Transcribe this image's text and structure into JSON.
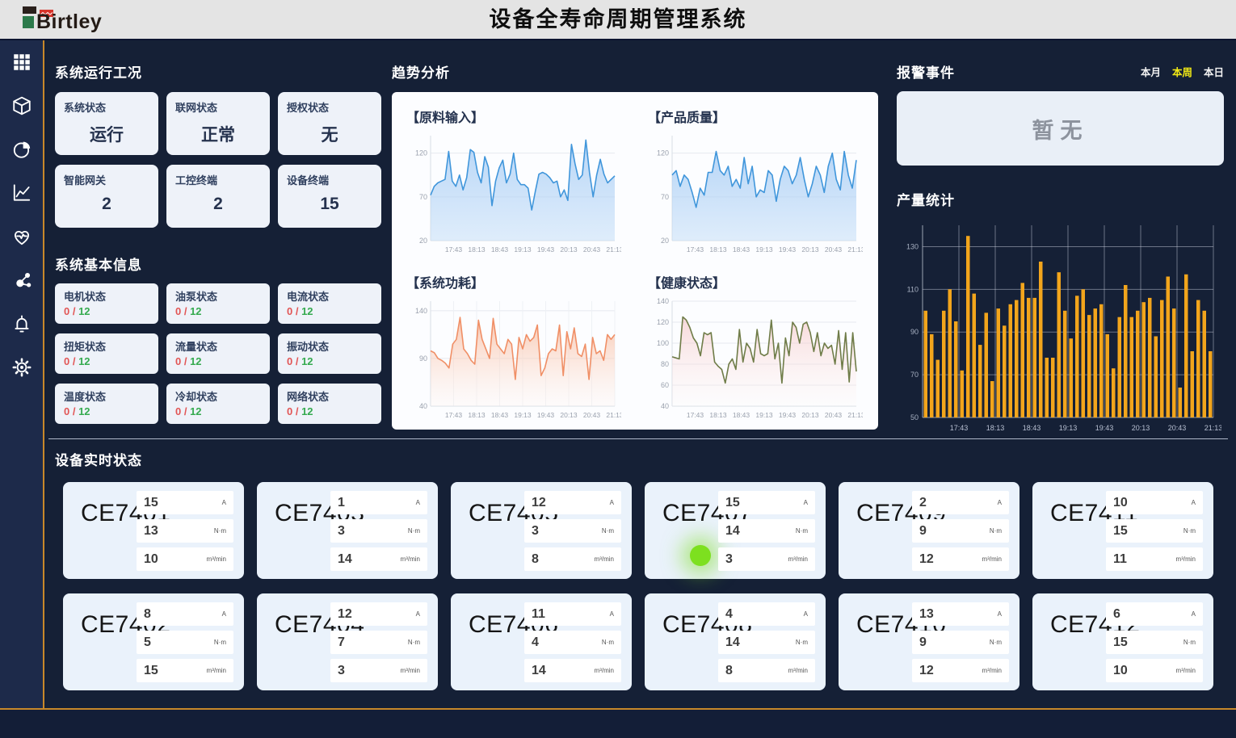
{
  "header": {
    "logo_text": "Birtley",
    "title": "设备全寿命周期管理系统"
  },
  "sidebar": {
    "icons": [
      "grid",
      "cube",
      "pie-chart",
      "line-chart",
      "health",
      "molecule",
      "bell",
      "gear"
    ]
  },
  "system_status": {
    "title": "系统运行工况",
    "cards": [
      {
        "label": "系统状态",
        "value": "运行"
      },
      {
        "label": "联网状态",
        "value": "正常"
      },
      {
        "label": "授权状态",
        "value": "无"
      },
      {
        "label": "智能网关",
        "value": "2"
      },
      {
        "label": "工控终端",
        "value": "2"
      },
      {
        "label": "设备终端",
        "value": "15"
      }
    ]
  },
  "system_info": {
    "title": "系统基本信息",
    "separator": " / ",
    "cards": [
      {
        "label": "电机状态",
        "current": "0",
        "total": "12"
      },
      {
        "label": "油泵状态",
        "current": "0",
        "total": "12"
      },
      {
        "label": "电流状态",
        "current": "0",
        "total": "12"
      },
      {
        "label": "扭矩状态",
        "current": "0",
        "total": "12"
      },
      {
        "label": "流量状态",
        "current": "0",
        "total": "12"
      },
      {
        "label": "振动状态",
        "current": "0",
        "total": "12"
      },
      {
        "label": "温度状态",
        "current": "0",
        "total": "12"
      },
      {
        "label": "冷却状态",
        "current": "0",
        "total": "12"
      },
      {
        "label": "网络状态",
        "current": "0",
        "total": "12"
      }
    ]
  },
  "trend": {
    "title": "趋势分析"
  },
  "alarm": {
    "title": "报警事件",
    "tabs": [
      {
        "label": "本月",
        "active": false
      },
      {
        "label": "本周",
        "active": true
      },
      {
        "label": "本日",
        "active": false
      }
    ],
    "empty_text": "暂无"
  },
  "production": {
    "title": "产量统计"
  },
  "devices": {
    "title": "设备实时状态",
    "units": [
      "A",
      "N·m",
      "m³/min"
    ],
    "cards": [
      {
        "name": "CE7401",
        "values": [
          15,
          13,
          10
        ],
        "indicator": false
      },
      {
        "name": "CE7403",
        "values": [
          1,
          3,
          14
        ],
        "indicator": false
      },
      {
        "name": "CE7405",
        "values": [
          12,
          3,
          8
        ],
        "indicator": false
      },
      {
        "name": "CE7407",
        "values": [
          15,
          14,
          3
        ],
        "indicator": true
      },
      {
        "name": "CE7409",
        "values": [
          2,
          9,
          12
        ],
        "indicator": false
      },
      {
        "name": "CE7411",
        "values": [
          10,
          15,
          11
        ],
        "indicator": false
      },
      {
        "name": "CE7402",
        "values": [
          8,
          5,
          15
        ],
        "indicator": false
      },
      {
        "name": "CE7404",
        "values": [
          12,
          7,
          3
        ],
        "indicator": false
      },
      {
        "name": "CE7406",
        "values": [
          11,
          4,
          14
        ],
        "indicator": false
      },
      {
        "name": "CE7408",
        "values": [
          4,
          14,
          8
        ],
        "indicator": false
      },
      {
        "name": "CE7410",
        "values": [
          13,
          9,
          12
        ],
        "indicator": false
      },
      {
        "name": "CE7412",
        "values": [
          6,
          15,
          10
        ],
        "indicator": false
      }
    ]
  },
  "chart_data": [
    {
      "type": "line",
      "title": "【原料输入】",
      "x_ticks": [
        "17:43",
        "18:13",
        "18:43",
        "19:13",
        "19:43",
        "20:13",
        "20:43",
        "21:13"
      ],
      "yticks": [
        20,
        70,
        120
      ],
      "ylim": [
        20,
        140
      ],
      "grid": "h",
      "color": "#4096db",
      "fill_from": "rgba(147,193,242,0.65)",
      "fill_to": "rgba(198,223,248,0.55)",
      "values": [
        72,
        82,
        86,
        88,
        90,
        122,
        88,
        82,
        95,
        78,
        92,
        124,
        121,
        98,
        86,
        116,
        104,
        60,
        88,
        103,
        112,
        86,
        96,
        120,
        90,
        84,
        84,
        80,
        55,
        76,
        96,
        98,
        96,
        92,
        86,
        88,
        70,
        78,
        66,
        130,
        108,
        90,
        95,
        135,
        98,
        70,
        95,
        113,
        96,
        86,
        90,
        94
      ]
    },
    {
      "type": "line",
      "title": "【产品质量】",
      "x_ticks": [
        "17:43",
        "18:13",
        "18:43",
        "19:13",
        "19:43",
        "20:13",
        "20:43",
        "21:13"
      ],
      "yticks": [
        20,
        70,
        120
      ],
      "ylim": [
        20,
        140
      ],
      "grid": "h",
      "color": "#4096db",
      "fill_from": "rgba(147,193,242,0.65)",
      "fill_to": "rgba(198,223,248,0.55)",
      "values": [
        95,
        100,
        82,
        95,
        90,
        75,
        58,
        80,
        72,
        98,
        98,
        122,
        100,
        95,
        105,
        82,
        90,
        80,
        115,
        85,
        105,
        70,
        78,
        75,
        100,
        95,
        65,
        90,
        105,
        100,
        85,
        95,
        115,
        90,
        70,
        85,
        105,
        95,
        75,
        105,
        120,
        90,
        78,
        122,
        95,
        80,
        112
      ]
    },
    {
      "type": "line",
      "title": "【系统功耗】",
      "x_ticks": [
        "17:43",
        "18:13",
        "18:43",
        "19:13",
        "19:43",
        "20:13",
        "20:43",
        "21:13"
      ],
      "yticks": [
        40,
        90,
        140
      ],
      "ylim": [
        40,
        150
      ],
      "grid": "hv",
      "color": "#f08f66",
      "fill_from": "rgba(247,176,143,0.7)",
      "fill_to": "rgba(255,243,238,0.25)",
      "values": [
        98,
        96,
        90,
        88,
        85,
        80,
        105,
        110,
        133,
        100,
        95,
        88,
        84,
        130,
        110,
        100,
        90,
        132,
        105,
        100,
        95,
        110,
        105,
        68,
        112,
        100,
        115,
        108,
        112,
        125,
        72,
        80,
        95,
        100,
        98,
        125,
        72,
        118,
        100,
        122,
        95,
        92,
        105,
        68,
        112,
        95,
        98,
        88,
        115,
        110,
        115
      ]
    },
    {
      "type": "line",
      "title": "【健康状态】",
      "x_ticks": [
        "17:43",
        "18:13",
        "18:43",
        "19:13",
        "19:43",
        "20:13",
        "20:43",
        "21:13"
      ],
      "yticks": [
        40,
        60,
        80,
        100,
        120,
        140
      ],
      "ylim": [
        40,
        140
      ],
      "grid": "h",
      "color": "#6f7c48",
      "fill_from": "rgba(243,180,180,0.5)",
      "fill_to": "rgba(255,248,246,0.2)",
      "values": [
        87,
        86,
        85,
        125,
        122,
        115,
        105,
        100,
        88,
        110,
        108,
        110,
        82,
        78,
        75,
        62,
        80,
        85,
        75,
        113,
        82,
        100,
        95,
        82,
        113,
        90,
        88,
        90,
        122,
        85,
        100,
        62,
        105,
        88,
        120,
        115,
        100,
        118,
        120,
        110,
        92,
        110,
        88,
        100,
        95,
        98,
        80,
        112,
        75,
        110,
        63,
        110,
        73
      ]
    },
    {
      "type": "bar",
      "title": "产量统计",
      "x_ticks": [
        "17:43",
        "18:13",
        "18:43",
        "19:13",
        "19:43",
        "20:13",
        "20:43",
        "21:13"
      ],
      "yticks": [
        50,
        70,
        90,
        110,
        130
      ],
      "ylim": [
        50,
        140
      ],
      "grid": "hv",
      "color": "#f2a51c",
      "values": [
        100,
        89,
        77,
        100,
        110,
        95,
        72,
        135,
        108,
        84,
        99,
        67,
        101,
        93,
        103,
        105,
        113,
        106,
        106,
        123,
        78,
        78,
        118,
        100,
        87,
        107,
        110,
        98,
        101,
        103,
        89,
        73,
        97,
        112,
        97,
        100,
        104,
        106,
        88,
        105,
        116,
        101,
        64,
        117,
        81,
        105,
        100,
        81
      ]
    }
  ]
}
